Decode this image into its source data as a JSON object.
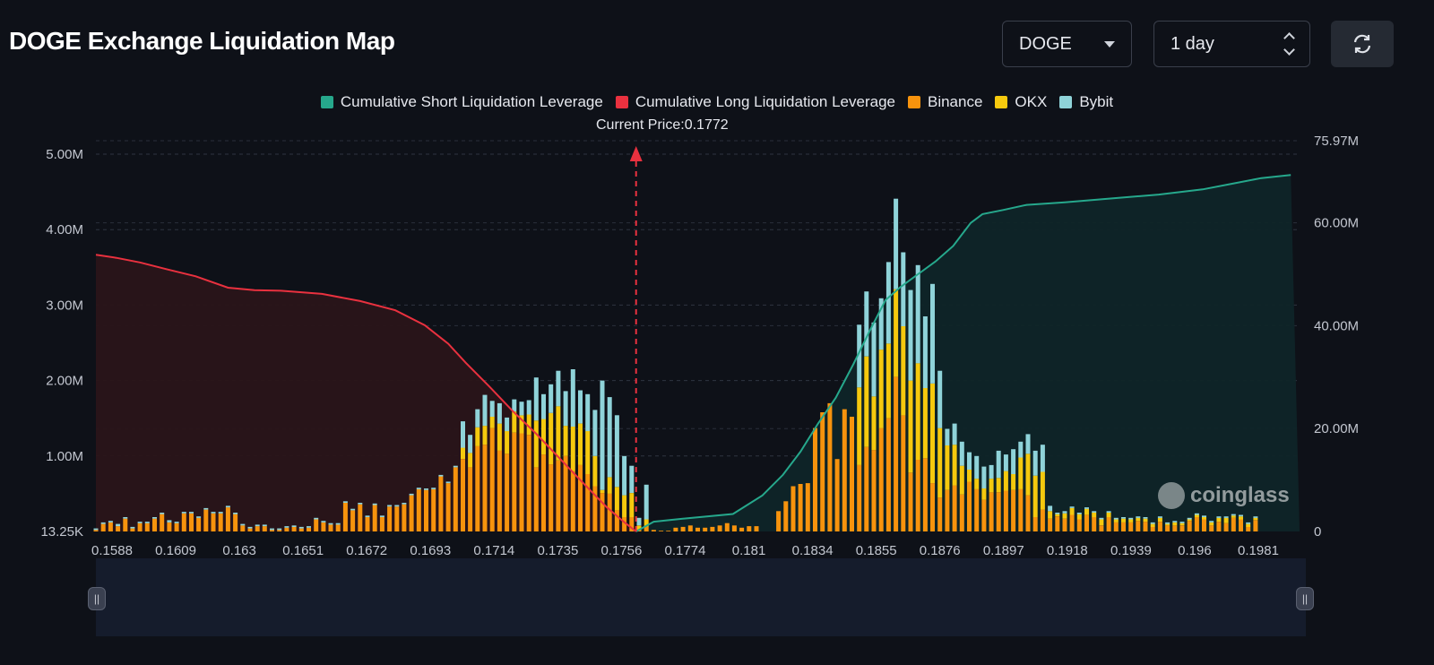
{
  "header": {
    "title": "DOGE Exchange Liquidation Map",
    "coin": "DOGE",
    "range": "1 day"
  },
  "icons": {
    "coin_caret": "chevron-down-icon",
    "range_stepper": "up-down-icon",
    "refresh": "refresh-icon",
    "handles": "grip-icon"
  },
  "watermark": "coinglass",
  "colors": {
    "short": "#26a88c",
    "long": "#e9313f",
    "binance": "#f7930d",
    "okx": "#f5c90e",
    "bybit": "#8fd3d9",
    "background": "#0e1118"
  },
  "chart_data": {
    "type": "bar",
    "title": "DOGE Exchange Liquidation Map",
    "current_price_label": "Current Price:0.1772",
    "current_price": 0.1772,
    "legend": [
      {
        "name": "Cumulative Short Liquidation Leverage",
        "color": "#26a88c"
      },
      {
        "name": "Cumulative Long Liquidation Leverage",
        "color": "#e9313f"
      },
      {
        "name": "Binance",
        "color": "#f7930d"
      },
      {
        "name": "OKX",
        "color": "#f5c90e"
      },
      {
        "name": "Bybit",
        "color": "#8fd3d9"
      }
    ],
    "x_tick_labels": [
      "0.1588",
      "0.1609",
      "0.163",
      "0.1651",
      "0.1672",
      "0.1693",
      "0.1714",
      "0.1735",
      "0.1756",
      "0.1774",
      "0.181",
      "0.1834",
      "0.1855",
      "0.1876",
      "0.1897",
      "0.1918",
      "0.1939",
      "0.196",
      "0.1981"
    ],
    "x_range": [
      0.1588,
      0.1998
    ],
    "y_left_ticks": [
      "13.25K",
      "1.00M",
      "2.00M",
      "3.00M",
      "4.00M",
      "5.00M"
    ],
    "y_left_range": [
      0,
      5000000
    ],
    "y_right_ticks": [
      "0",
      "20.00M",
      "40.00M",
      "60.00M",
      "75.97M"
    ],
    "y_right_range": [
      0,
      75970000
    ],
    "bars": {
      "x": [
        0.1588,
        0.15905,
        0.1593,
        0.15955,
        0.1598,
        0.16005,
        0.1603,
        0.16055,
        0.1608,
        0.16105,
        0.1613,
        0.16155,
        0.1618,
        0.16205,
        0.1623,
        0.16255,
        0.1628,
        0.16305,
        0.1633,
        0.16355,
        0.1638,
        0.16405,
        0.1643,
        0.16455,
        0.1648,
        0.16505,
        0.1653,
        0.16555,
        0.1658,
        0.16605,
        0.1663,
        0.16655,
        0.1668,
        0.16705,
        0.1673,
        0.16755,
        0.1678,
        0.16805,
        0.1683,
        0.16855,
        0.1688,
        0.16905,
        0.1693,
        0.16955,
        0.1698,
        0.17005,
        0.1703,
        0.17055,
        0.1708,
        0.17105,
        0.1713,
        0.17155,
        0.1718,
        0.17205,
        0.1723,
        0.17255,
        0.1728,
        0.17305,
        0.1733,
        0.17355,
        0.1738,
        0.17405,
        0.1743,
        0.17455,
        0.1748,
        0.17505,
        0.1753,
        0.17555,
        0.1758,
        0.17605,
        0.1763,
        0.17655,
        0.1768,
        0.17705,
        0.1773,
        0.17755,
        0.1778,
        0.17805,
        0.1783,
        0.17855,
        0.1788,
        0.17905,
        0.1793,
        0.17955,
        0.1798,
        0.18005,
        0.1803,
        0.18055,
        0.1808,
        0.18105,
        0.1813,
        0.18155,
        0.1818,
        0.18205,
        0.1823,
        0.18255,
        0.1828,
        0.18305,
        0.1833,
        0.18355,
        0.1838,
        0.18405,
        0.1843,
        0.18455,
        0.1848,
        0.18505,
        0.1853,
        0.18555,
        0.1858,
        0.18605,
        0.1863,
        0.18655,
        0.1868,
        0.18705,
        0.1873,
        0.18755,
        0.1878,
        0.18805,
        0.1883,
        0.18855,
        0.1888,
        0.18905,
        0.1893,
        0.18955,
        0.1898,
        0.19005,
        0.1903,
        0.19055,
        0.1908,
        0.19105,
        0.1913,
        0.19155,
        0.1918,
        0.19205,
        0.1923,
        0.19255,
        0.1928,
        0.19305,
        0.1933,
        0.19355,
        0.1938,
        0.19405,
        0.1943,
        0.19455,
        0.1948,
        0.19505,
        0.1953,
        0.19555,
        0.1958,
        0.19605,
        0.1963,
        0.19655,
        0.1968,
        0.19705,
        0.1973,
        0.19755,
        0.1978,
        0.19805,
        0.1983
      ],
      "binance": [
        20000,
        100000,
        120000,
        70000,
        170000,
        40000,
        110000,
        110000,
        170000,
        230000,
        120000,
        110000,
        240000,
        240000,
        180000,
        290000,
        240000,
        240000,
        320000,
        230000,
        80000,
        40000,
        70000,
        70000,
        20000,
        20000,
        50000,
        60000,
        40000,
        50000,
        160000,
        120000,
        90000,
        90000,
        380000,
        280000,
        360000,
        190000,
        350000,
        190000,
        330000,
        330000,
        360000,
        480000,
        560000,
        550000,
        560000,
        730000,
        640000,
        850000,
        960000,
        850000,
        1130000,
        1150000,
        1370000,
        1070000,
        1030000,
        1310000,
        1300000,
        1280000,
        850000,
        1020000,
        890000,
        940000,
        1000000,
        800000,
        880000,
        760000,
        600000,
        510000,
        500000,
        280000,
        190000,
        190000,
        20000,
        60000,
        20000,
        10000,
        10000,
        50000,
        60000,
        80000,
        50000,
        50000,
        60000,
        80000,
        110000,
        80000,
        50000,
        70000,
        70000,
        0,
        0,
        270000,
        400000,
        600000,
        630000,
        640000,
        1370000,
        1580000,
        1700000,
        960000,
        1620000,
        1520000,
        880000,
        1120000,
        1080000,
        1370000,
        1500000,
        2050000,
        1540000,
        780000,
        950000,
        970000,
        640000,
        450000,
        550000,
        610000,
        490000,
        660000,
        560000,
        420000,
        520000,
        520000,
        540000,
        550000,
        560000,
        480000,
        190000,
        290000,
        170000,
        200000,
        170000,
        220000,
        160000,
        220000,
        190000,
        80000,
        190000,
        120000,
        120000,
        120000,
        140000,
        130000,
        60000,
        130000,
        80000,
        80000,
        80000,
        140000,
        190000,
        160000,
        80000,
        130000,
        110000,
        180000,
        160000,
        60000,
        150000,
        150000,
        160000
      ],
      "okx": [
        0,
        0,
        0,
        0,
        0,
        0,
        0,
        0,
        0,
        0,
        0,
        0,
        0,
        0,
        0,
        0,
        0,
        0,
        0,
        0,
        0,
        0,
        0,
        0,
        0,
        0,
        0,
        0,
        0,
        0,
        0,
        0,
        0,
        0,
        0,
        0,
        0,
        0,
        0,
        0,
        0,
        0,
        0,
        0,
        0,
        0,
        0,
        0,
        0,
        0,
        150000,
        190000,
        250000,
        250000,
        150000,
        360000,
        300000,
        280000,
        240000,
        270000,
        620000,
        470000,
        680000,
        720000,
        400000,
        590000,
        550000,
        570000,
        400000,
        40000,
        220000,
        310000,
        290000,
        320000,
        60000,
        100000,
        0,
        0,
        0,
        0,
        0,
        0,
        0,
        0,
        0,
        0,
        0,
        0,
        0,
        0,
        0,
        0,
        0,
        0,
        0,
        0,
        0,
        0,
        0,
        0,
        0,
        0,
        0,
        0,
        1030000,
        1200000,
        710000,
        1040000,
        990000,
        1160000,
        1180000,
        1220000,
        1280000,
        930000,
        1320000,
        920000,
        590000,
        540000,
        380000,
        160000,
        140000,
        150000,
        180000,
        190000,
        260000,
        210000,
        420000,
        550000,
        550000,
        500000,
        100000,
        30000,
        70000,
        90000,
        70000,
        80000,
        60000,
        80000,
        60000,
        40000,
        50000,
        40000,
        40000,
        40000,
        40000,
        50000,
        20000,
        40000,
        30000,
        20000,
        30000,
        30000,
        40000,
        50000,
        70000,
        30000,
        40000,
        40000,
        30000,
        50000,
        20000,
        50000,
        50000,
        60000
      ],
      "bybit": [
        20000,
        20000,
        20000,
        30000,
        20000,
        20000,
        20000,
        20000,
        20000,
        20000,
        30000,
        20000,
        20000,
        20000,
        20000,
        20000,
        20000,
        20000,
        20000,
        20000,
        20000,
        20000,
        20000,
        20000,
        20000,
        20000,
        20000,
        20000,
        20000,
        20000,
        20000,
        20000,
        20000,
        20000,
        20000,
        20000,
        20000,
        20000,
        20000,
        20000,
        20000,
        20000,
        20000,
        20000,
        20000,
        20000,
        20000,
        20000,
        20000,
        20000,
        350000,
        240000,
        240000,
        410000,
        210000,
        270000,
        180000,
        160000,
        180000,
        190000,
        570000,
        330000,
        380000,
        470000,
        460000,
        760000,
        440000,
        490000,
        610000,
        1450000,
        1060000,
        950000,
        520000,
        360000,
        100000,
        460000,
        0,
        0,
        0,
        0,
        0,
        0,
        0,
        0,
        0,
        0,
        0,
        0,
        0,
        0,
        0,
        0,
        0,
        0,
        0,
        0,
        0,
        0,
        0,
        0,
        0,
        0,
        0,
        0,
        830000,
        860000,
        980000,
        680000,
        1080000,
        1200000,
        980000,
        1200000,
        1300000,
        950000,
        1320000,
        760000,
        220000,
        280000,
        320000,
        230000,
        300000,
        290000,
        180000,
        360000,
        220000,
        330000,
        210000,
        260000,
        330000,
        360000,
        70000,
        20000,
        30000,
        20000,
        20000,
        20000,
        20000,
        20000,
        20000,
        20000,
        20000,
        20000,
        20000,
        20000,
        20000,
        20000,
        20000,
        20000,
        20000,
        20000,
        20000,
        20000,
        20000,
        20000,
        20000,
        20000,
        20000,
        20000,
        20000,
        20000,
        20000,
        20000,
        20000,
        20000
      ]
    },
    "long_cumulative": {
      "x": [
        0.1588,
        0.1595,
        0.1603,
        0.1612,
        0.1622,
        0.1633,
        0.1642,
        0.1651,
        0.1665,
        0.1678,
        0.169,
        0.17,
        0.1708,
        0.1714,
        0.1722,
        0.173,
        0.1738,
        0.1746,
        0.1754,
        0.1762,
        0.1768,
        0.1772
      ],
      "y": [
        53800000,
        53200000,
        52300000,
        51000000,
        49600000,
        47400000,
        46900000,
        46800000,
        46200000,
        44800000,
        43000000,
        40100000,
        36500000,
        32800000,
        28200000,
        23400000,
        19000000,
        14200000,
        9400000,
        4700000,
        1800000,
        0
      ]
    },
    "short_cumulative": {
      "x": [
        0.1772,
        0.1778,
        0.179,
        0.1805,
        0.1815,
        0.1822,
        0.1828,
        0.1834,
        0.184,
        0.1846,
        0.1852,
        0.1857,
        0.1862,
        0.1868,
        0.1874,
        0.188,
        0.1886,
        0.189,
        0.1897,
        0.1905,
        0.1918,
        0.1935,
        0.195,
        0.1965,
        0.1975,
        0.1985,
        0.1995
      ],
      "y": [
        0,
        1900000,
        2600000,
        3400000,
        7000000,
        11000000,
        15500000,
        21000000,
        26000000,
        32500000,
        39500000,
        45000000,
        47500000,
        50000000,
        52500000,
        55500000,
        60000000,
        61700000,
        62500000,
        63500000,
        64000000,
        64800000,
        65500000,
        66500000,
        67600000,
        68700000,
        69300000
      ]
    }
  }
}
